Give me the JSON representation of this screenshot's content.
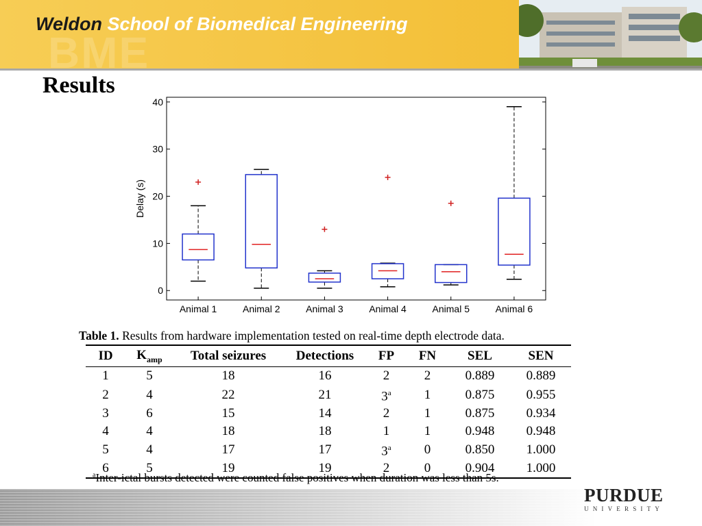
{
  "header": {
    "brand": "Weldon",
    "school": "School of Biomedical Engineering",
    "watermark": "BME"
  },
  "slide_title": "Results",
  "chart_data": {
    "type": "box",
    "ylabel": "Delay (s)",
    "categories": [
      "Animal 1",
      "Animal 2",
      "Animal 3",
      "Animal 4",
      "Animal 5",
      "Animal 6"
    ],
    "ylim": [
      -2,
      41
    ],
    "yticks": [
      0,
      10,
      20,
      30,
      40
    ],
    "box_color": "#2233cc",
    "median_color": "#e02020",
    "whisker_color": "#000000",
    "outlier_color": "#d02020",
    "boxes": [
      {
        "low": 2,
        "q1": 6.5,
        "median": 8.7,
        "q3": 12,
        "high": 18,
        "outliers": [
          23
        ]
      },
      {
        "low": 0.5,
        "q1": 4.8,
        "median": 9.8,
        "q3": 24.6,
        "high": 25.7,
        "outliers": []
      },
      {
        "low": 0.5,
        "q1": 1.8,
        "median": 2.5,
        "q3": 3.7,
        "high": 4.2,
        "outliers": [
          13
        ]
      },
      {
        "low": 0.8,
        "q1": 2.5,
        "median": 4.2,
        "q3": 5.7,
        "high": 5.8,
        "outliers": [
          24
        ]
      },
      {
        "low": 1.2,
        "q1": 1.7,
        "median": 4,
        "q3": 5.5,
        "high": 5.5,
        "outliers": [
          18.5
        ]
      },
      {
        "low": 2.4,
        "q1": 5.4,
        "median": 7.7,
        "q3": 19.6,
        "high": 39,
        "outliers": []
      }
    ]
  },
  "table": {
    "caption_label": "Table 1.",
    "caption": "Results from hardware implementation tested on real-time depth electrode data.",
    "columns": [
      "ID",
      {
        "text": "K",
        "sub": "amp"
      },
      "Total seizures",
      "Detections",
      "FP",
      "FN",
      "SEL",
      "SEN"
    ],
    "rows": [
      [
        "1",
        "5",
        "18",
        "16",
        "2",
        "2",
        "0.889",
        "0.889"
      ],
      [
        "2",
        "4",
        "22",
        "21",
        {
          "text": "3",
          "sup": "a"
        },
        "1",
        "0.875",
        "0.955"
      ],
      [
        "3",
        "6",
        "15",
        "14",
        "2",
        "1",
        "0.875",
        "0.934"
      ],
      [
        "4",
        "4",
        "18",
        "18",
        "1",
        "1",
        "0.948",
        "0.948"
      ],
      [
        "5",
        "4",
        "17",
        "17",
        {
          "text": "3",
          "sup": "a"
        },
        "0",
        "0.850",
        "1.000"
      ],
      [
        "6",
        "5",
        "19",
        "19",
        "2",
        "0",
        "0.904",
        "1.000"
      ]
    ],
    "footnote": {
      "sup": "a",
      "text": "Inter-ictal bursts detected were counted false positives when duration was less than 5s."
    }
  },
  "footer": {
    "logo": "PURDUE",
    "sub": "UNIVERSITY"
  }
}
